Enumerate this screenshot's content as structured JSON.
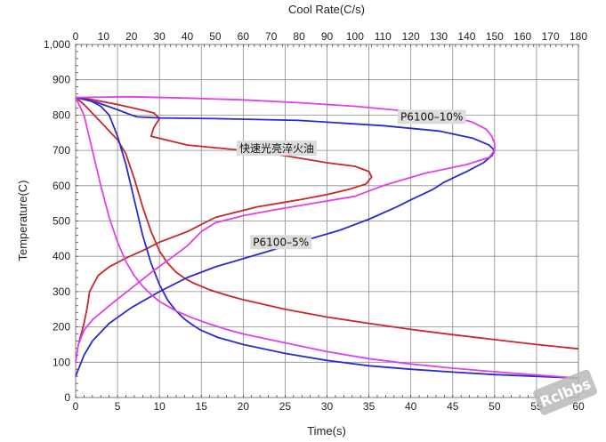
{
  "chart_data": {
    "type": "line",
    "title": "",
    "xlabel": "Time(s)",
    "ylabel": "Temperature(C)",
    "x2label": "Cool Rate(C/s)",
    "xlim": [
      0,
      60
    ],
    "ylim": [
      0,
      1000
    ],
    "x2lim": [
      0,
      180
    ],
    "x_ticks": [
      "0",
      "5",
      "10",
      "15",
      "20",
      "25",
      "30",
      "35",
      "40",
      "45",
      "50",
      "55",
      "60"
    ],
    "y_ticks": [
      "0",
      "100",
      "200",
      "300",
      "400",
      "500",
      "600",
      "700",
      "800",
      "900",
      "1,000"
    ],
    "x2_ticks": [
      "0",
      "10",
      "20",
      "30",
      "40",
      "50",
      "60",
      "70",
      "80",
      "90",
      "100",
      "110",
      "120",
      "130",
      "140",
      "150",
      "160",
      "170",
      "180"
    ],
    "grid": true,
    "annotations": [
      {
        "text": "快速光亮淬火油",
        "x": 24,
        "y": 695,
        "color": "#c8262a"
      },
      {
        "text": "P6100–10%",
        "x": 42.5,
        "y": 785,
        "color": "#e040e8"
      },
      {
        "text": "P6100–5%",
        "x": 24.5,
        "y": 430,
        "color": "#2a2ad0"
      }
    ],
    "series": [
      {
        "name": "快速光亮淬火油",
        "color": "#c8262a",
        "time_curve": [
          [
            0,
            850
          ],
          [
            1,
            830
          ],
          [
            2,
            805
          ],
          [
            3,
            780
          ],
          [
            4,
            755
          ],
          [
            5,
            730
          ],
          [
            6,
            690
          ],
          [
            7,
            620
          ],
          [
            8,
            540
          ],
          [
            9,
            470
          ],
          [
            10,
            415
          ],
          [
            11,
            380
          ],
          [
            12,
            355
          ],
          [
            13,
            338
          ],
          [
            14,
            325
          ],
          [
            16,
            305
          ],
          [
            18,
            290
          ],
          [
            20,
            277
          ],
          [
            25,
            250
          ],
          [
            30,
            228
          ],
          [
            35,
            210
          ],
          [
            40,
            193
          ],
          [
            45,
            178
          ],
          [
            50,
            164
          ],
          [
            55,
            150
          ],
          [
            60,
            138
          ]
        ],
        "rate_curve": [
          [
            0,
            850
          ],
          [
            5,
            845
          ],
          [
            15,
            830
          ],
          [
            25,
            812
          ],
          [
            28,
            806
          ],
          [
            30,
            790
          ],
          [
            28,
            765
          ],
          [
            27,
            740
          ],
          [
            40,
            715
          ],
          [
            60,
            700
          ],
          [
            75,
            685
          ],
          [
            90,
            665
          ],
          [
            100,
            655
          ],
          [
            105,
            640
          ],
          [
            106,
            625
          ],
          [
            104,
            605
          ],
          [
            98,
            590
          ],
          [
            90,
            575
          ],
          [
            80,
            560
          ],
          [
            65,
            540
          ],
          [
            50,
            510
          ],
          [
            40,
            470
          ],
          [
            30,
            440
          ],
          [
            25,
            420
          ],
          [
            18,
            395
          ],
          [
            12,
            370
          ],
          [
            8,
            345
          ],
          [
            5,
            300
          ],
          [
            4,
            250
          ],
          [
            3,
            210
          ],
          [
            2,
            180
          ],
          [
            1,
            150
          ]
        ]
      },
      {
        "name": "P6100–5%",
        "color": "#2a2ad0",
        "time_curve": [
          [
            0,
            850
          ],
          [
            1,
            845
          ],
          [
            2,
            838
          ],
          [
            3,
            825
          ],
          [
            4,
            800
          ],
          [
            5,
            740
          ],
          [
            6,
            660
          ],
          [
            7,
            560
          ],
          [
            8,
            460
          ],
          [
            9,
            380
          ],
          [
            10,
            320
          ],
          [
            11,
            275
          ],
          [
            12,
            245
          ],
          [
            13,
            222
          ],
          [
            14,
            205
          ],
          [
            15,
            190
          ],
          [
            17,
            170
          ],
          [
            20,
            150
          ],
          [
            25,
            125
          ],
          [
            30,
            105
          ],
          [
            35,
            90
          ],
          [
            40,
            80
          ],
          [
            45,
            72
          ],
          [
            50,
            65
          ],
          [
            55,
            60
          ],
          [
            60,
            55
          ]
        ],
        "rate_curve": [
          [
            0,
            850
          ],
          [
            8,
            835
          ],
          [
            15,
            815
          ],
          [
            20,
            800
          ],
          [
            22,
            795
          ],
          [
            30,
            792
          ],
          [
            50,
            790
          ],
          [
            80,
            785
          ],
          [
            110,
            770
          ],
          [
            130,
            755
          ],
          [
            142,
            735
          ],
          [
            148,
            715
          ],
          [
            150,
            700
          ],
          [
            149,
            685
          ],
          [
            146,
            665
          ],
          [
            140,
            640
          ],
          [
            132,
            610
          ],
          [
            128,
            590
          ],
          [
            120,
            560
          ],
          [
            115,
            540
          ],
          [
            105,
            505
          ],
          [
            95,
            475
          ],
          [
            80,
            440
          ],
          [
            65,
            405
          ],
          [
            50,
            370
          ],
          [
            40,
            340
          ],
          [
            30,
            300
          ],
          [
            20,
            255
          ],
          [
            12,
            210
          ],
          [
            6,
            160
          ],
          [
            3,
            120
          ],
          [
            1,
            80
          ],
          [
            0,
            60
          ]
        ]
      },
      {
        "name": "P6100–10%",
        "color": "#e040e8",
        "time_curve": [
          [
            0,
            850
          ],
          [
            1,
            800
          ],
          [
            2,
            700
          ],
          [
            3,
            600
          ],
          [
            4,
            510
          ],
          [
            5,
            440
          ],
          [
            6,
            385
          ],
          [
            7,
            345
          ],
          [
            8,
            315
          ],
          [
            9,
            292
          ],
          [
            10,
            272
          ],
          [
            12,
            245
          ],
          [
            14,
            225
          ],
          [
            16,
            208
          ],
          [
            18,
            193
          ],
          [
            20,
            180
          ],
          [
            25,
            155
          ],
          [
            30,
            130
          ],
          [
            35,
            110
          ],
          [
            40,
            95
          ],
          [
            45,
            83
          ],
          [
            50,
            73
          ],
          [
            55,
            64
          ],
          [
            60,
            55
          ]
        ],
        "rate_curve": [
          [
            0,
            850
          ],
          [
            20,
            852
          ],
          [
            40,
            848
          ],
          [
            60,
            843
          ],
          [
            80,
            835
          ],
          [
            100,
            825
          ],
          [
            120,
            810
          ],
          [
            135,
            795
          ],
          [
            142,
            780
          ],
          [
            147,
            760
          ],
          [
            149,
            740
          ],
          [
            150,
            720
          ],
          [
            150,
            700
          ],
          [
            148,
            680
          ],
          [
            140,
            660
          ],
          [
            125,
            635
          ],
          [
            110,
            600
          ],
          [
            100,
            570
          ],
          [
            85,
            550
          ],
          [
            70,
            530
          ],
          [
            60,
            515
          ],
          [
            50,
            495
          ],
          [
            45,
            470
          ],
          [
            40,
            430
          ],
          [
            35,
            400
          ],
          [
            28,
            360
          ],
          [
            20,
            310
          ],
          [
            12,
            260
          ],
          [
            6,
            220
          ],
          [
            3,
            190
          ],
          [
            1,
            150
          ],
          [
            0,
            100
          ]
        ]
      }
    ]
  },
  "watermark": {
    "text": "Rclbbs"
  }
}
